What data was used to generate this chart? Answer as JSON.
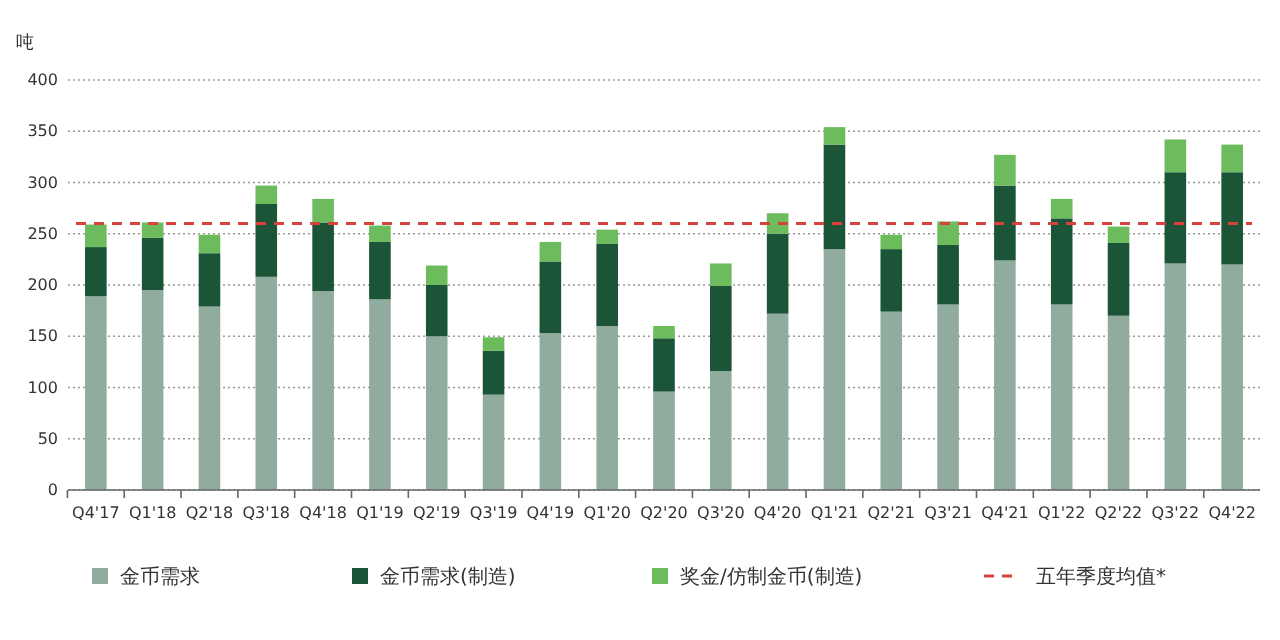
{
  "chart_data": {
    "type": "bar",
    "stacked": true,
    "ylabel": "吨",
    "categories": [
      "Q4'17",
      "Q1'18",
      "Q2'18",
      "Q3'18",
      "Q4'18",
      "Q1'19",
      "Q2'19",
      "Q3'19",
      "Q4'19",
      "Q1'20",
      "Q2'20",
      "Q3'20",
      "Q4'20",
      "Q1'21",
      "Q2'21",
      "Q3'21",
      "Q4'21",
      "Q1'22",
      "Q2'22",
      "Q3'22",
      "Q4'22"
    ],
    "series": [
      {
        "name": "金币需求",
        "color": "#8fac9e",
        "values": [
          189,
          195,
          179,
          208,
          194,
          186,
          150,
          93,
          153,
          160,
          96,
          116,
          172,
          235,
          174,
          181,
          224,
          181,
          170,
          221,
          220
        ]
      },
      {
        "name": "金币需求(制造)",
        "color": "#1b5436",
        "values": [
          48,
          51,
          52,
          71,
          67,
          56,
          50,
          43,
          70,
          80,
          52,
          83,
          78,
          102,
          61,
          58,
          73,
          84,
          71,
          89,
          90
        ]
      },
      {
        "name": "奖金/仿制金币(制造)",
        "color": "#6cbb5c",
        "values": [
          22,
          15,
          18,
          18,
          23,
          16,
          19,
          13,
          19,
          14,
          12,
          22,
          20,
          17,
          14,
          23,
          30,
          19,
          16,
          32,
          27
        ]
      }
    ],
    "ref_lines": [
      {
        "axis": "y",
        "value": 260,
        "label": "五年季度均值*",
        "color": "#d9413c",
        "line_style": "dashed"
      }
    ],
    "ylim": [
      0,
      400
    ],
    "yticks": [
      0,
      50,
      100,
      150,
      200,
      250,
      300,
      350,
      400
    ],
    "grid": "y",
    "legend": "bottom"
  }
}
